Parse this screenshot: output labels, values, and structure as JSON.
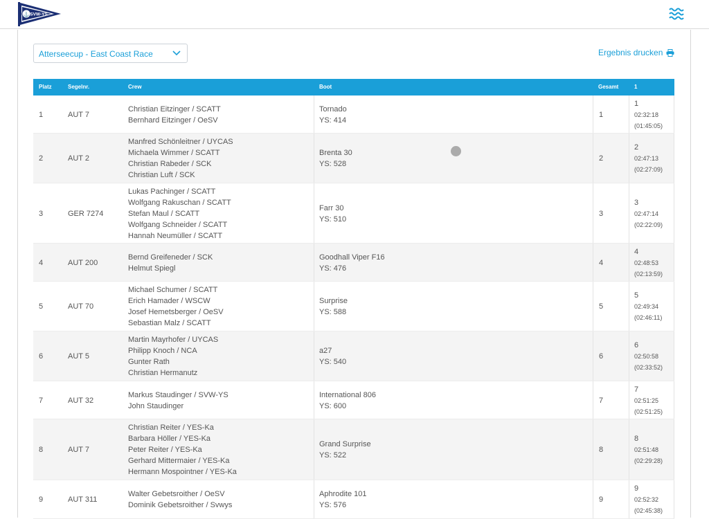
{
  "header": {
    "logo_text": "SVW-YS",
    "menu_icon": "waves-menu-icon"
  },
  "controls": {
    "race_select": "Atterseecup - East Coast Race",
    "print_label": "Ergebnis drucken"
  },
  "table": {
    "columns": [
      "Platz",
      "Segelnr.",
      "Crew",
      "Boot",
      "Gesamt",
      "1"
    ],
    "rows": [
      {
        "place": "1",
        "sail": "AUT 7",
        "crew": [
          "Christian Eitzinger / SCATT",
          "Bernhard Eitzinger / OeSV"
        ],
        "boat": "Tornado",
        "ys": "YS: 414",
        "total": "1",
        "race_place": "1",
        "race_time": "02:32:18",
        "race_corr": "(01:45:05)"
      },
      {
        "place": "2",
        "sail": "AUT 2",
        "crew": [
          "Manfred Schönleitner / UYCAS",
          "Michaela Wimmer / SCATT",
          "Christian Rabeder / SCK",
          "Christian Luft / SCK"
        ],
        "boat": "Brenta 30",
        "ys": "YS: 528",
        "total": "2",
        "race_place": "2",
        "race_time": "02:47:13",
        "race_corr": "(02:27:09)"
      },
      {
        "place": "3",
        "sail": "GER 7274",
        "crew": [
          "Lukas Pachinger / SCATT",
          "Wolfgang Rakuschan / SCATT",
          "Stefan Maul / SCATT",
          "Wolfgang Schneider / SCATT",
          "Hannah Neumüller / SCATT"
        ],
        "boat": "Farr 30",
        "ys": "YS: 510",
        "total": "3",
        "race_place": "3",
        "race_time": "02:47:14",
        "race_corr": "(02:22:09)"
      },
      {
        "place": "4",
        "sail": "AUT 200",
        "crew": [
          "Bernd Greifeneder / SCK",
          "Helmut Spiegl"
        ],
        "boat": "Goodhall Viper F16",
        "ys": "YS: 476",
        "total": "4",
        "race_place": "4",
        "race_time": "02:48:53",
        "race_corr": "(02:13:59)"
      },
      {
        "place": "5",
        "sail": "AUT 70",
        "crew": [
          "Michael Schumer / SCATT",
          "Erich Hamader / WSCW",
          "Josef Hemetsberger / OeSV",
          "Sebastian  Malz / SCATT"
        ],
        "boat": "Surprise",
        "ys": "YS: 588",
        "total": "5",
        "race_place": "5",
        "race_time": "02:49:34",
        "race_corr": "(02:46:11)"
      },
      {
        "place": "6",
        "sail": "AUT 5",
        "crew": [
          "Martin Mayrhofer / UYCAS",
          "Philipp Knoch / NCA",
          "Gunter  Rath",
          "Christian  Hermanutz"
        ],
        "boat": "a27",
        "ys": "YS: 540",
        "total": "6",
        "race_place": "6",
        "race_time": "02:50:58",
        "race_corr": "(02:33:52)"
      },
      {
        "place": "7",
        "sail": "AUT 32",
        "crew": [
          "Markus Staudinger / SVW-YS",
          "John Staudinger"
        ],
        "boat": "International 806",
        "ys": "YS: 600",
        "total": "7",
        "race_place": "7",
        "race_time": "02:51:25",
        "race_corr": "(02:51:25)"
      },
      {
        "place": "8",
        "sail": "AUT 7",
        "crew": [
          "Christian Reiter / YES-Ka",
          "Barbara Höller / YES-Ka",
          "Peter Reiter / YES-Ka",
          "Gerhard Mittermaier / YES-Ka",
          "Hermann Mospointner / YES-Ka"
        ],
        "boat": "Grand Surprise",
        "ys": "YS: 522",
        "total": "8",
        "race_place": "8",
        "race_time": "02:51:48",
        "race_corr": "(02:29:28)"
      },
      {
        "place": "9",
        "sail": "AUT 311",
        "crew": [
          "Walter Gebetsroither / OeSV",
          "Dominik Gebetsroither / Svwys"
        ],
        "boat": "Aphrodite 101",
        "ys": "YS: 576",
        "total": "9",
        "race_place": "9",
        "race_time": "02:52:32",
        "race_corr": "(02:45:38)"
      }
    ]
  },
  "colors": {
    "accent": "#1a9fd8",
    "header_text": "#ffffff",
    "row_alt": "#f4f4f4",
    "logo_navy": "#1b2f74"
  }
}
